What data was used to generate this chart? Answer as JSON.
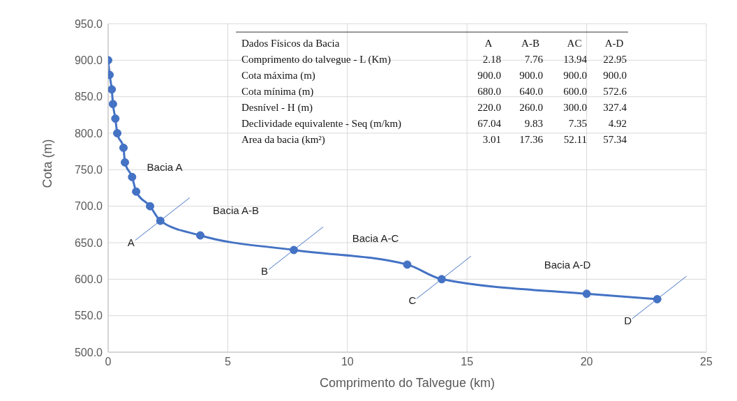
{
  "chart_data": {
    "type": "line",
    "xlabel": "Comprimento do Talvegue (km)",
    "ylabel": "Cota (m)",
    "x": [
      0,
      0.06,
      0.15,
      0.2,
      0.3,
      0.38,
      0.64,
      0.7,
      1.0,
      1.17,
      1.75,
      2.18,
      3.85,
      7.76,
      12.5,
      13.94,
      20.0,
      22.95
    ],
    "series": [
      {
        "color": "#4472c4",
        "values": [
          900,
          880,
          860,
          840,
          820,
          800,
          780,
          760,
          740,
          720,
          700,
          680,
          660,
          640,
          620,
          600,
          580,
          572.6
        ]
      }
    ],
    "xlim": [
      0,
      25
    ],
    "xticks": [
      0,
      5,
      10,
      15,
      20,
      25
    ],
    "ylim": [
      500,
      950
    ],
    "yticks": [
      {
        "value": 500,
        "label": "500.0"
      },
      {
        "value": 550,
        "label": "550.0"
      },
      {
        "value": 600,
        "label": "600.0"
      },
      {
        "value": 650,
        "label": "650.0"
      },
      {
        "value": 700,
        "label": "700.0"
      },
      {
        "value": 750,
        "label": "750.0"
      },
      {
        "value": 800,
        "label": "800.0"
      },
      {
        "value": 850,
        "label": "850.0"
      },
      {
        "value": 900,
        "label": "900.0"
      },
      {
        "value": 950,
        "label": "950.0"
      }
    ],
    "grid": true,
    "marker": "circle",
    "line_style": "solid",
    "annotations": [
      "Bacia A",
      "Bacia A-B",
      "Bacia A-C",
      "Bacia A-D",
      {
        "text": "A",
        "x": 2.18,
        "y": 680
      },
      {
        "text": "B",
        "x": 7.76,
        "y": 640
      },
      {
        "text": "C",
        "x": 13.94,
        "y": 600
      },
      {
        "text": "D",
        "x": 22.95,
        "y": 572.6
      },
      "Dados Físicos da Bacia",
      "A",
      "A-B",
      "AC",
      "A-D",
      "Comprimento do talvegue - L (Km)",
      "2.18",
      "7.76",
      "13.94",
      "22.95",
      "Cota máxima (m)",
      "900.0",
      "900.0",
      "900.0",
      "900.0",
      "Cota mínima (m)",
      "680.0",
      "640.0",
      "600.0",
      "572.6",
      "Desnível - H (m)",
      "220.0",
      "260.0",
      "300.0",
      "327.4",
      "Declividade equivalente - Seq (m/km)",
      "67.04",
      "9.83",
      "7.35",
      "4.92",
      "Area da bacia (km²)",
      "3.01",
      "17.36",
      "52.11",
      "57.34"
    ]
  }
}
